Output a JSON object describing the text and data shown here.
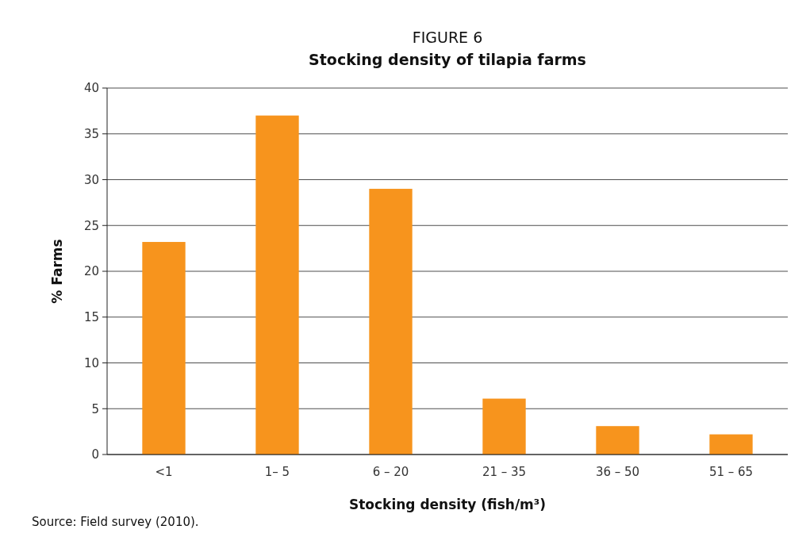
{
  "chart_data": {
    "type": "bar",
    "title": "FIGURE 6",
    "subtitle": "Stocking density of tilapia farms",
    "xlabel": "Stocking density (fish/m³)",
    "ylabel": "% Farms",
    "categories": [
      "<1",
      "1– 5",
      "6 – 20",
      "21 – 35",
      "36 – 50",
      "51 – 65"
    ],
    "values": [
      23.2,
      37,
      29,
      6.1,
      3.1,
      2.2
    ],
    "color": "#f7941d",
    "ylim": [
      0,
      40
    ],
    "yticks": [
      0,
      5,
      10,
      15,
      20,
      25,
      30,
      35,
      40
    ],
    "grid": "y",
    "annotations": [
      "Source: Field survey (2010)."
    ]
  }
}
